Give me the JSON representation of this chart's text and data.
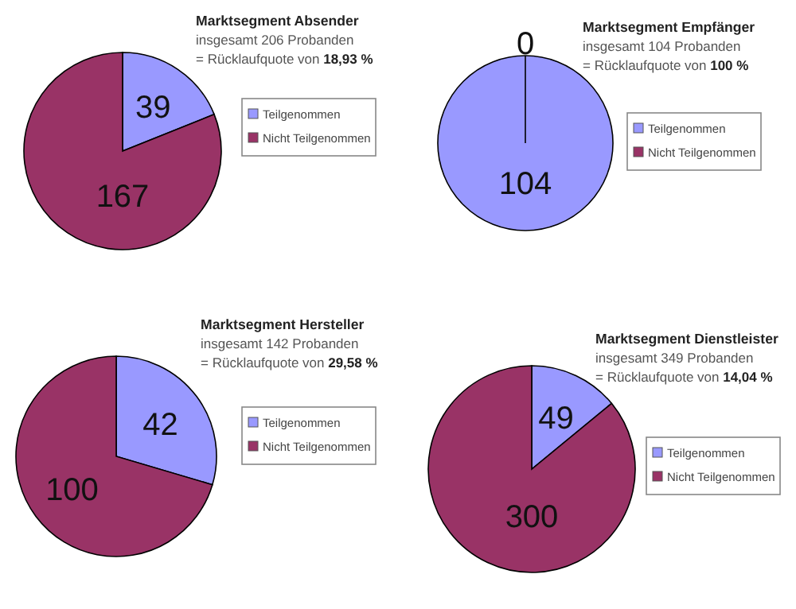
{
  "chart_data": [
    {
      "type": "pie",
      "title": "Marktsegment Absender",
      "subtitle": "insgesamt 206 Probanden",
      "annotations": [
        "= Rücklaufquote von 18,93 %"
      ],
      "categories": [
        "Teilgenommen",
        "Nicht Teilgenommen"
      ],
      "values": [
        39,
        167
      ],
      "value_labels": [
        "39",
        "167"
      ],
      "colors": [
        "#9999ff",
        "#993366"
      ],
      "legend": "right"
    },
    {
      "type": "pie",
      "title": "Marktsegment Empfänger",
      "subtitle": "insgesamt 104 Probanden",
      "annotations": [
        "= Rücklaufquote von 100 %"
      ],
      "categories": [
        "Teilgenommen",
        "Nicht Teilgenommen"
      ],
      "values": [
        104,
        0
      ],
      "value_labels": [
        "104",
        "0"
      ],
      "colors": [
        "#9999ff",
        "#993366"
      ],
      "legend": "right"
    },
    {
      "type": "pie",
      "title": "Marktsegment Hersteller",
      "subtitle": "insgesamt 142 Probanden",
      "annotations": [
        "= Rücklaufquote von 29,58 %"
      ],
      "categories": [
        "Teilgenommen",
        "Nicht Teilgenommen"
      ],
      "values": [
        42,
        100
      ],
      "value_labels": [
        "42",
        "100"
      ],
      "colors": [
        "#9999ff",
        "#993366"
      ],
      "legend": "right"
    },
    {
      "type": "pie",
      "title": "Marktsegment Dienstleister",
      "subtitle": "insgesamt 349 Probanden",
      "annotations": [
        "= Rücklaufquote von 14,04 %"
      ],
      "categories": [
        "Teilgenommen",
        "Nicht Teilgenommen"
      ],
      "values": [
        49,
        300
      ],
      "value_labels": [
        "49",
        "300"
      ],
      "colors": [
        "#9999ff",
        "#993366"
      ],
      "legend": "right"
    }
  ]
}
